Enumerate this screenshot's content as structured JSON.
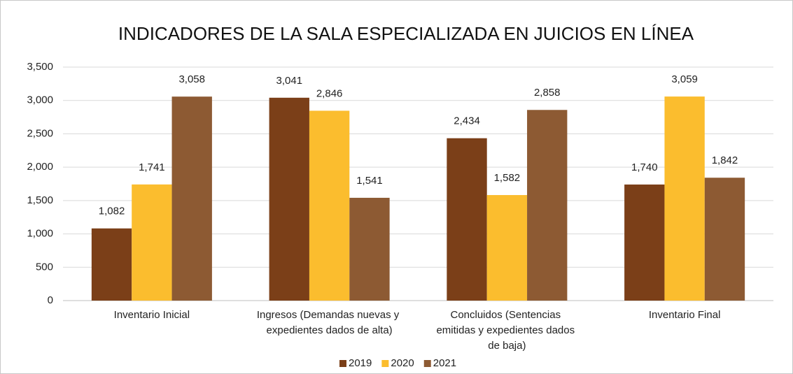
{
  "chart_data": {
    "type": "bar",
    "title": "INDICADORES DE LA SALA ESPECIALIZADA EN JUICIOS EN LÍNEA",
    "categories": [
      "Inventario Inicial",
      "Ingresos (Demandas nuevas y expedientes dados de alta)",
      "Concluidos (Sentencias emitidas y expedientes dados de baja)",
      "Inventario Final"
    ],
    "series": [
      {
        "name": "2019",
        "color": "#7b3f18",
        "values": [
          1082,
          3041,
          2434,
          1740
        ],
        "value_labels": [
          "1,082",
          "3,041",
          "2,434",
          "1,740"
        ]
      },
      {
        "name": "2020",
        "color": "#fbbd2e",
        "values": [
          1741,
          2846,
          1582,
          3059
        ],
        "value_labels": [
          "1,741",
          "2,846",
          "1,582",
          "3,059"
        ]
      },
      {
        "name": "2021",
        "color": "#8d5a33",
        "values": [
          3058,
          1541,
          2858,
          1842
        ],
        "value_labels": [
          "3,058",
          "1,541",
          "2,858",
          "1,842"
        ]
      }
    ],
    "ylim": [
      0,
      3500
    ],
    "yticks": [
      0,
      500,
      {
        "value": 1000,
        "label": "1,000"
      },
      {
        "value": 1500,
        "label": "1,500"
      },
      {
        "value": 2000,
        "label": "2,000"
      },
      {
        "value": 2500,
        "label": "2,500"
      },
      {
        "value": 3000,
        "label": "3,000"
      },
      {
        "value": 3500,
        "label": "3,500"
      }
    ],
    "grid": true,
    "legend": "bottom"
  }
}
